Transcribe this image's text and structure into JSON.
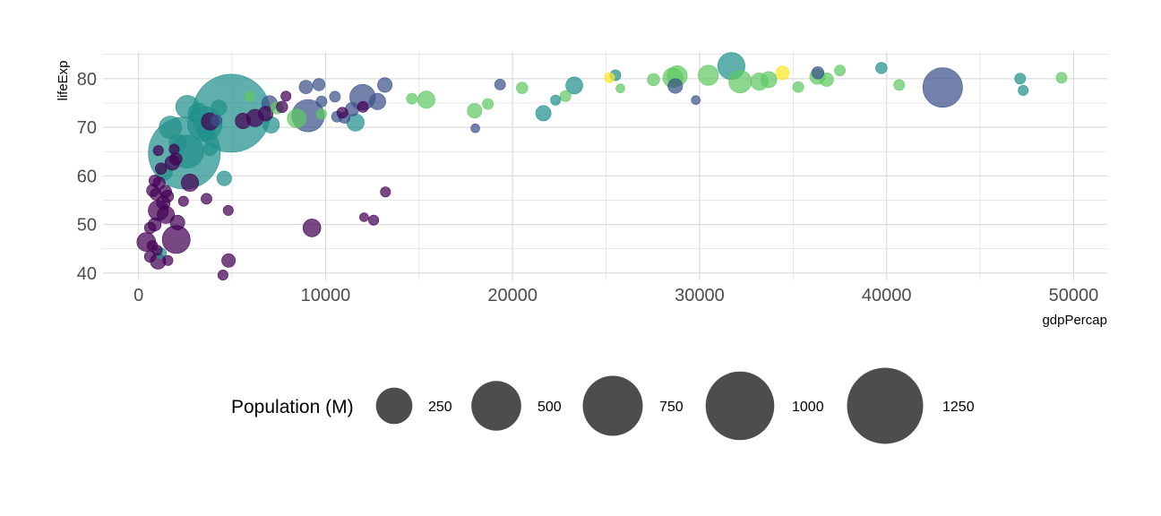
{
  "chart_data": {
    "type": "scatter",
    "title": "",
    "xlabel": "gdpPercap",
    "ylabel": "lifeExp",
    "xlim": [
      -1900,
      51800
    ],
    "ylim": [
      38.5,
      85.5
    ],
    "x_ticks": [
      0,
      10000,
      20000,
      30000,
      40000,
      50000
    ],
    "x_tick_labels": [
      "0",
      "10000",
      "20000",
      "30000",
      "40000",
      "50000"
    ],
    "y_ticks": [
      40,
      50,
      60,
      70,
      80
    ],
    "y_tick_labels": [
      "40",
      "50",
      "60",
      "70",
      "80"
    ],
    "grid": true,
    "size_variable": "Population (M)",
    "colors": {
      "dark_purple": "#440154",
      "slate_blue": "#3b528b",
      "teal": "#21908c",
      "green": "#5ec962",
      "yellow": "#fde725",
      "grid": "#d9d9d9",
      "legend_bubble": "#4d4d4d"
    },
    "legend": {
      "title": "Population (M)",
      "position": "bottom",
      "entries": [
        {
          "label": "250",
          "value": 250
        },
        {
          "label": "500",
          "value": 500
        },
        {
          "label": "750",
          "value": 750
        },
        {
          "label": "1000",
          "value": 1000
        },
        {
          "label": "1250",
          "value": 1250
        }
      ]
    },
    "points": [
      {
        "x": 4959,
        "y": 72.9,
        "pop": 1319,
        "color": "teal"
      },
      {
        "x": 2452,
        "y": 64.7,
        "pop": 1110,
        "color": "teal"
      },
      {
        "x": 43000,
        "y": 78.2,
        "pop": 301,
        "color": "slate_blue"
      },
      {
        "x": 31700,
        "y": 82.6,
        "pop": 127,
        "color": "teal"
      },
      {
        "x": 3540,
        "y": 70.7,
        "pop": 224,
        "color": "teal"
      },
      {
        "x": 2606,
        "y": 74.2,
        "pop": 85,
        "color": "teal"
      },
      {
        "x": 9065,
        "y": 72.4,
        "pop": 190,
        "color": "slate_blue"
      },
      {
        "x": 11977,
        "y": 76.2,
        "pop": 109,
        "color": "slate_blue"
      },
      {
        "x": 2014,
        "y": 46.9,
        "pop": 135,
        "color": "dark_purple"
      },
      {
        "x": 9269,
        "y": 49.3,
        "pop": 44,
        "color": "dark_purple"
      },
      {
        "x": 4811,
        "y": 42.6,
        "pop": 20,
        "color": "dark_purple"
      },
      {
        "x": 32170,
        "y": 79.4,
        "pop": 82,
        "color": "green"
      },
      {
        "x": 28800,
        "y": 80.6,
        "pop": 61,
        "color": "green"
      },
      {
        "x": 30470,
        "y": 80.7,
        "pop": 60,
        "color": "green"
      },
      {
        "x": 28570,
        "y": 80.2,
        "pop": 58,
        "color": "green"
      },
      {
        "x": 33200,
        "y": 79.4,
        "pop": 40,
        "color": "green"
      },
      {
        "x": 33700,
        "y": 79.8,
        "pop": 33,
        "color": "green"
      },
      {
        "x": 36300,
        "y": 80.4,
        "pop": 28,
        "color": "green"
      },
      {
        "x": 34435,
        "y": 81.2,
        "pop": 20,
        "color": "yellow"
      },
      {
        "x": 25185,
        "y": 80.2,
        "pop": 8,
        "color": "yellow"
      },
      {
        "x": 23300,
        "y": 78.6,
        "pop": 38,
        "color": "teal"
      },
      {
        "x": 21650,
        "y": 72.9,
        "pop": 29,
        "color": "teal"
      },
      {
        "x": 25500,
        "y": 80.7,
        "pop": 10,
        "color": "teal"
      },
      {
        "x": 22300,
        "y": 75.6,
        "pop": 8,
        "color": "teal"
      },
      {
        "x": 39724,
        "y": 82.2,
        "pop": 12,
        "color": "teal"
      },
      {
        "x": 47143,
        "y": 80.0,
        "pop": 10,
        "color": "teal"
      },
      {
        "x": 47307,
        "y": 77.6,
        "pop": 8,
        "color": "teal"
      },
      {
        "x": 28700,
        "y": 78.5,
        "pop": 25,
        "color": "slate_blue"
      },
      {
        "x": 29800,
        "y": 75.6,
        "pop": 5,
        "color": "slate_blue"
      },
      {
        "x": 36320,
        "y": 81.2,
        "pop": 15,
        "color": "slate_blue"
      },
      {
        "x": 19330,
        "y": 78.8,
        "pop": 10,
        "color": "slate_blue"
      },
      {
        "x": 18008,
        "y": 69.8,
        "pop": 5,
        "color": "slate_blue"
      },
      {
        "x": 13171,
        "y": 78.7,
        "pop": 25,
        "color": "slate_blue"
      },
      {
        "x": 12779,
        "y": 75.3,
        "pop": 35,
        "color": "slate_blue"
      },
      {
        "x": 9645,
        "y": 78.8,
        "pop": 15,
        "color": "slate_blue"
      },
      {
        "x": 8948,
        "y": 78.3,
        "pop": 20,
        "color": "slate_blue"
      },
      {
        "x": 10611,
        "y": 72.2,
        "pop": 10,
        "color": "slate_blue"
      },
      {
        "x": 11415,
        "y": 73.7,
        "pop": 20,
        "color": "slate_blue"
      },
      {
        "x": 11006,
        "y": 72.0,
        "pop": 12,
        "color": "slate_blue"
      },
      {
        "x": 9786,
        "y": 75.3,
        "pop": 10,
        "color": "slate_blue"
      },
      {
        "x": 7000,
        "y": 74.9,
        "pop": 30,
        "color": "slate_blue"
      },
      {
        "x": 4173,
        "y": 71.4,
        "pop": 10,
        "color": "slate_blue"
      },
      {
        "x": 10500,
        "y": 76.3,
        "pop": 10,
        "color": "slate_blue"
      },
      {
        "x": 15390,
        "y": 75.7,
        "pop": 40,
        "color": "green"
      },
      {
        "x": 14619,
        "y": 75.9,
        "pop": 10,
        "color": "green"
      },
      {
        "x": 17970,
        "y": 73.4,
        "pop": 25,
        "color": "green"
      },
      {
        "x": 18680,
        "y": 74.8,
        "pop": 10,
        "color": "green"
      },
      {
        "x": 20510,
        "y": 78.1,
        "pop": 12,
        "color": "green"
      },
      {
        "x": 22833,
        "y": 76.4,
        "pop": 10,
        "color": "green"
      },
      {
        "x": 25768,
        "y": 78.0,
        "pop": 5,
        "color": "green"
      },
      {
        "x": 27538,
        "y": 79.8,
        "pop": 15,
        "color": "green"
      },
      {
        "x": 35278,
        "y": 78.3,
        "pop": 10,
        "color": "green"
      },
      {
        "x": 36797,
        "y": 79.8,
        "pop": 20,
        "color": "green"
      },
      {
        "x": 37506,
        "y": 81.7,
        "pop": 10,
        "color": "green"
      },
      {
        "x": 40676,
        "y": 78.7,
        "pop": 10,
        "color": "green"
      },
      {
        "x": 49357,
        "y": 80.2,
        "pop": 10,
        "color": "green"
      },
      {
        "x": 8458,
        "y": 71.8,
        "pop": 50,
        "color": "green"
      },
      {
        "x": 7400,
        "y": 74.0,
        "pop": 15,
        "color": "green"
      },
      {
        "x": 5937,
        "y": 76.4,
        "pop": 8,
        "color": "green"
      },
      {
        "x": 9786,
        "y": 72.7,
        "pop": 8,
        "color": "green"
      },
      {
        "x": 11605,
        "y": 71.0,
        "pop": 40,
        "color": "teal"
      },
      {
        "x": 7092,
        "y": 70.5,
        "pop": 35,
        "color": "teal"
      },
      {
        "x": 4580,
        "y": 59.5,
        "pop": 25,
        "color": "teal"
      },
      {
        "x": 3822,
        "y": 65.5,
        "pop": 18,
        "color": "teal"
      },
      {
        "x": 1200,
        "y": 44.1,
        "pop": 10,
        "color": "teal"
      },
      {
        "x": 1700,
        "y": 70.0,
        "pop": 80,
        "color": "teal"
      },
      {
        "x": 3190,
        "y": 72.9,
        "pop": 60,
        "color": "teal"
      },
      {
        "x": 4300,
        "y": 74.0,
        "pop": 30,
        "color": "teal"
      },
      {
        "x": 2600,
        "y": 65.0,
        "pop": 200,
        "color": "teal"
      },
      {
        "x": 1400,
        "y": 60.8,
        "pop": 30,
        "color": "teal"
      },
      {
        "x": 2100,
        "y": 66.8,
        "pop": 40,
        "color": "teal"
      },
      {
        "x": 3600,
        "y": 69.2,
        "pop": 40,
        "color": "teal"
      },
      {
        "x": 2749,
        "y": 58.6,
        "pop": 40,
        "color": "dark_purple"
      },
      {
        "x": 1460,
        "y": 52.0,
        "pop": 40,
        "color": "dark_purple"
      },
      {
        "x": 1059,
        "y": 52.9,
        "pop": 60,
        "color": "dark_purple"
      },
      {
        "x": 415,
        "y": 46.4,
        "pop": 50,
        "color": "dark_purple"
      },
      {
        "x": 1042,
        "y": 42.4,
        "pop": 30,
        "color": "dark_purple"
      },
      {
        "x": 620,
        "y": 43.4,
        "pop": 12,
        "color": "dark_purple"
      },
      {
        "x": 1000,
        "y": 44.7,
        "pop": 8,
        "color": "dark_purple"
      },
      {
        "x": 740,
        "y": 45.6,
        "pop": 10,
        "color": "dark_purple"
      },
      {
        "x": 1569,
        "y": 42.6,
        "pop": 8,
        "color": "dark_purple"
      },
      {
        "x": 4513,
        "y": 39.6,
        "pop": 8,
        "color": "dark_purple"
      },
      {
        "x": 619,
        "y": 49.3,
        "pop": 12,
        "color": "dark_purple"
      },
      {
        "x": 863,
        "y": 50.0,
        "pop": 18,
        "color": "dark_purple"
      },
      {
        "x": 2082,
        "y": 50.4,
        "pop": 25,
        "color": "dark_purple"
      },
      {
        "x": 1328,
        "y": 54.5,
        "pop": 20,
        "color": "dark_purple"
      },
      {
        "x": 1545,
        "y": 55.8,
        "pop": 15,
        "color": "dark_purple"
      },
      {
        "x": 926,
        "y": 56.2,
        "pop": 12,
        "color": "dark_purple"
      },
      {
        "x": 759,
        "y": 57.0,
        "pop": 15,
        "color": "dark_purple"
      },
      {
        "x": 1441,
        "y": 56.8,
        "pop": 15,
        "color": "dark_purple"
      },
      {
        "x": 1100,
        "y": 58.5,
        "pop": 15,
        "color": "dark_purple"
      },
      {
        "x": 863,
        "y": 59.0,
        "pop": 12,
        "color": "dark_purple"
      },
      {
        "x": 1200,
        "y": 61.5,
        "pop": 12,
        "color": "dark_purple"
      },
      {
        "x": 2400,
        "y": 54.8,
        "pop": 8,
        "color": "dark_purple"
      },
      {
        "x": 3632,
        "y": 55.3,
        "pop": 10,
        "color": "dark_purple"
      },
      {
        "x": 4797,
        "y": 52.9,
        "pop": 8,
        "color": "dark_purple"
      },
      {
        "x": 12057,
        "y": 51.5,
        "pop": 5,
        "color": "dark_purple"
      },
      {
        "x": 12570,
        "y": 50.9,
        "pop": 8,
        "color": "dark_purple"
      },
      {
        "x": 13206,
        "y": 56.7,
        "pop": 8,
        "color": "dark_purple"
      },
      {
        "x": 1056,
        "y": 65.2,
        "pop": 8,
        "color": "dark_purple"
      },
      {
        "x": 1803,
        "y": 62.7,
        "pop": 25,
        "color": "dark_purple"
      },
      {
        "x": 2000,
        "y": 63.5,
        "pop": 15,
        "color": "dark_purple"
      },
      {
        "x": 1902,
        "y": 65.5,
        "pop": 8,
        "color": "dark_purple"
      },
      {
        "x": 3820,
        "y": 71.2,
        "pop": 40,
        "color": "dark_purple"
      },
      {
        "x": 5581,
        "y": 71.3,
        "pop": 30,
        "color": "dark_purple"
      },
      {
        "x": 6223,
        "y": 71.9,
        "pop": 40,
        "color": "dark_purple"
      },
      {
        "x": 7670,
        "y": 74.2,
        "pop": 12,
        "color": "dark_purple"
      },
      {
        "x": 7881,
        "y": 76.4,
        "pop": 8,
        "color": "dark_purple"
      },
      {
        "x": 10900,
        "y": 73.0,
        "pop": 10,
        "color": "dark_purple"
      },
      {
        "x": 12000,
        "y": 74.2,
        "pop": 10,
        "color": "dark_purple"
      },
      {
        "x": 6800,
        "y": 72.8,
        "pop": 25,
        "color": "dark_purple"
      }
    ]
  }
}
